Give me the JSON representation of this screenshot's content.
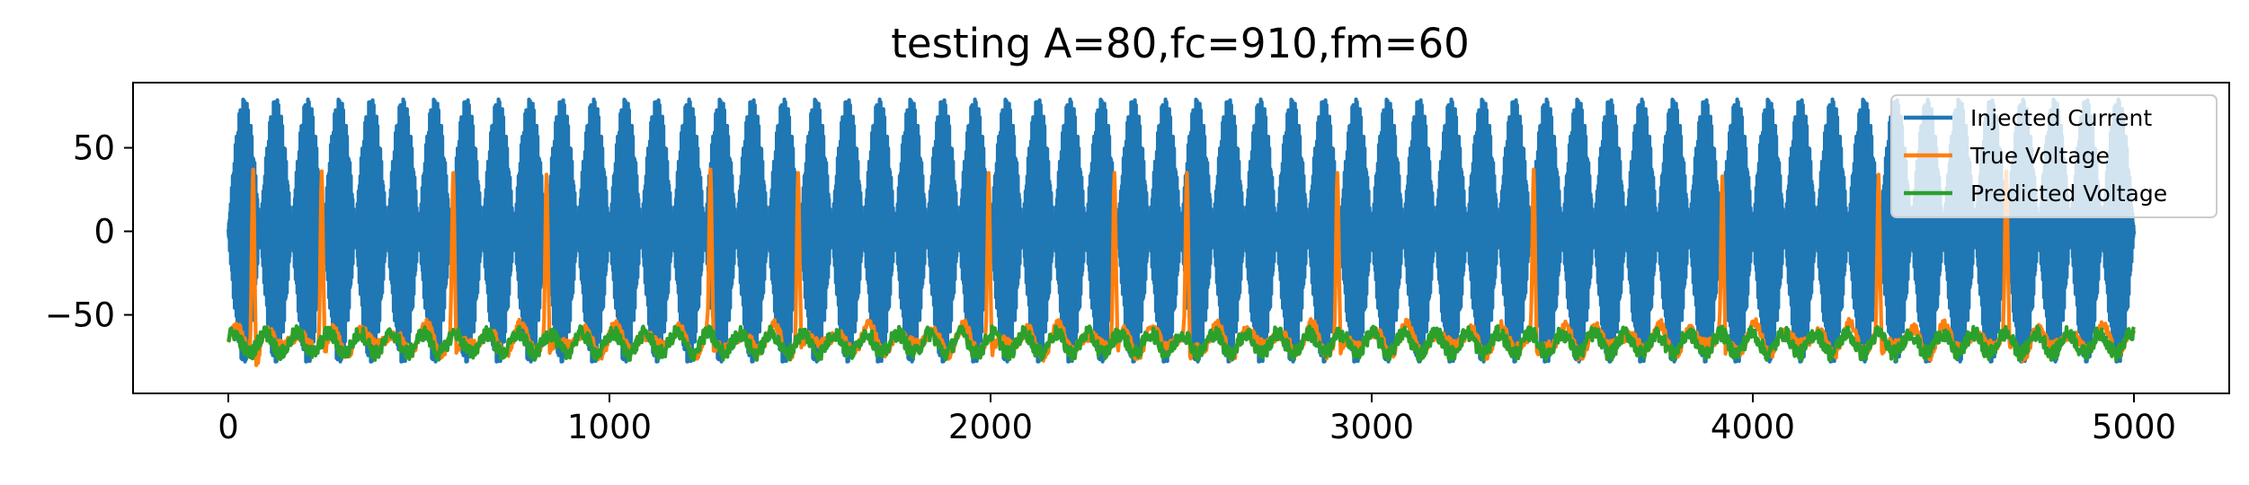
{
  "chart_data": {
    "type": "line",
    "title": "testing A=80,fc=910,fm=60",
    "xlabel": "",
    "ylabel": "",
    "xlim": [
      -250,
      5250
    ],
    "ylim": [
      -97,
      89
    ],
    "x_ticks": [
      0,
      1000,
      2000,
      3000,
      4000,
      5000
    ],
    "x_tick_labels": [
      "0",
      "1000",
      "2000",
      "3000",
      "4000",
      "5000"
    ],
    "y_ticks": [
      50,
      0,
      -50
    ],
    "y_tick_labels": [
      "50",
      "0",
      "−50"
    ],
    "grid": false,
    "legend_position": "top-right",
    "series": [
      {
        "name": "Injected Current",
        "color": "#1f77b4",
        "x_range": [
          0,
          5000
        ],
        "amplitude": 80,
        "carrier_frequency": 910,
        "modulation_frequency": 60,
        "approx_range": [
          -80,
          80
        ]
      },
      {
        "name": "True Voltage",
        "color": "#ff7f0e",
        "resting_level": -65,
        "approx_range": [
          -85,
          38
        ],
        "spike_x": [
          65,
          245,
          590,
          835,
          1265,
          1495,
          1995,
          2325,
          2515,
          2910,
          3425,
          3920,
          4330,
          4665
        ],
        "spike_peaks": [
          37,
          36,
          35,
          34,
          37,
          35,
          35,
          35,
          35,
          35,
          37,
          33,
          34,
          36
        ]
      },
      {
        "name": "Predicted Voltage",
        "color": "#2ca02c",
        "resting_level": -67,
        "approx_range": [
          -77,
          -55
        ]
      }
    ]
  }
}
